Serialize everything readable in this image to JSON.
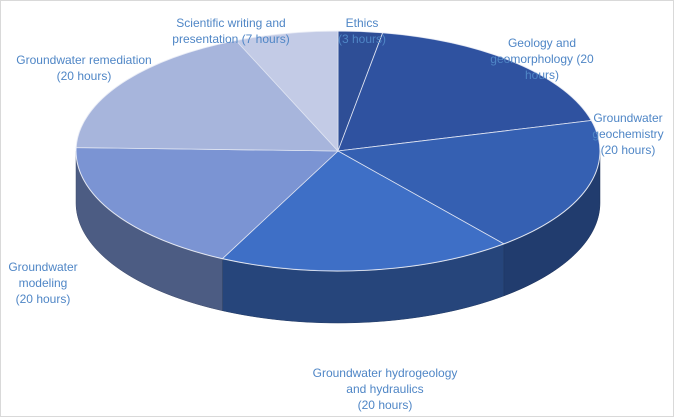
{
  "chart_data": {
    "type": "pie",
    "style": "3d",
    "title": "",
    "total": 110,
    "slices": [
      {
        "category": "Ethics",
        "value": 3,
        "label": [
          "Ethics",
          "(3 hours)"
        ],
        "color": "#2e4e96"
      },
      {
        "category": "Geology and geomorphology",
        "value": 20,
        "label": [
          "Geology and",
          "geomorphology  (20",
          "hours)"
        ],
        "color": "#2f52a0"
      },
      {
        "category": "Groundwater geochemistry",
        "value": 20,
        "label": [
          "Groundwater",
          "geochemistry",
          "(20 hours)"
        ],
        "color": "#3560b2"
      },
      {
        "category": "Groundwater hydrogeology and hydraulics",
        "value": 20,
        "label": [
          "Groundwater hydrogeology",
          "and hydraulics",
          "(20 hours)"
        ],
        "color": "#3e6fc6"
      },
      {
        "category": "Groundwater modeling",
        "value": 20,
        "label": [
          "Groundwater",
          "modeling",
          "(20 hours)"
        ],
        "color": "#7b94d3"
      },
      {
        "category": "Groundwater remediation",
        "value": 20,
        "label": [
          "Groundwater remediation",
          "(20 hours)"
        ],
        "color": "#a7b5dc"
      },
      {
        "category": "Scientific writing and presentation",
        "value": 7,
        "label": [
          "Scientific writing and",
          "presentation (7 hours)"
        ],
        "color": "#c3cbe6"
      }
    ]
  }
}
